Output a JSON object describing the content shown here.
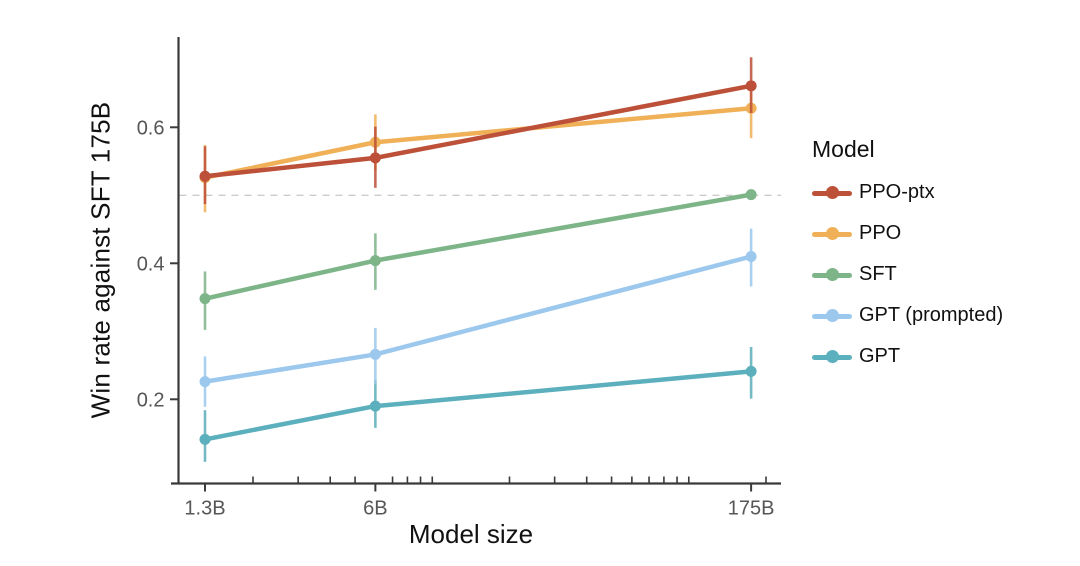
{
  "figure": {
    "background": "#ffffff",
    "axis_color": "#3a3a3a",
    "tick_label_color": "#565656",
    "text_color": "#111111"
  },
  "chart_data": {
    "type": "line",
    "title": "",
    "xlabel": "Model size",
    "ylabel": "Win rate against SFT 175B",
    "x_scale": "log",
    "grid": "off",
    "categories": [
      "1.3B",
      "6B",
      "175B"
    ],
    "x_values": [
      1.3,
      6,
      175
    ],
    "x_minor_ticks": [
      2,
      3,
      4,
      5,
      7,
      8,
      9,
      10,
      20,
      30,
      40,
      50,
      60,
      70,
      80,
      90,
      100,
      200
    ],
    "ytick_labels": [
      "0.6",
      "0.4",
      "0.2"
    ],
    "ytick_values": [
      0.6,
      0.4,
      0.2
    ],
    "ylim": [
      0.08,
      0.735
    ],
    "reference_line": {
      "value": 0.5,
      "style": "dashed",
      "color": "#cccccc"
    },
    "legend": {
      "title": "Model",
      "position": "right"
    },
    "series": [
      {
        "name": "PPO-ptx",
        "color": "#bc5038",
        "values": [
          0.528,
          0.555,
          0.661
        ],
        "err_low": [
          0.487,
          0.511,
          0.621
        ],
        "err_high": [
          0.572,
          0.601,
          0.703
        ]
      },
      {
        "name": "PPO",
        "color": "#f0b057",
        "values": [
          0.526,
          0.578,
          0.628
        ],
        "err_low": [
          0.475,
          0.537,
          0.584
        ],
        "err_high": [
          0.574,
          0.619,
          0.652
        ]
      },
      {
        "name": "SFT",
        "color": "#7db588",
        "values": [
          0.348,
          0.404,
          0.501
        ],
        "err_low": [
          0.302,
          0.361,
          0.501
        ],
        "err_high": [
          0.388,
          0.444,
          0.501
        ]
      },
      {
        "name": "GPT (prompted)",
        "color": "#9cc8ee",
        "values": [
          0.226,
          0.266,
          0.41
        ],
        "err_low": [
          0.189,
          0.222,
          0.366
        ],
        "err_high": [
          0.263,
          0.305,
          0.451
        ]
      },
      {
        "name": "GPT",
        "color": "#5cafbc",
        "values": [
          0.141,
          0.19,
          0.241
        ],
        "err_low": [
          0.108,
          0.158,
          0.201
        ],
        "err_high": [
          0.184,
          0.228,
          0.277
        ]
      }
    ]
  }
}
